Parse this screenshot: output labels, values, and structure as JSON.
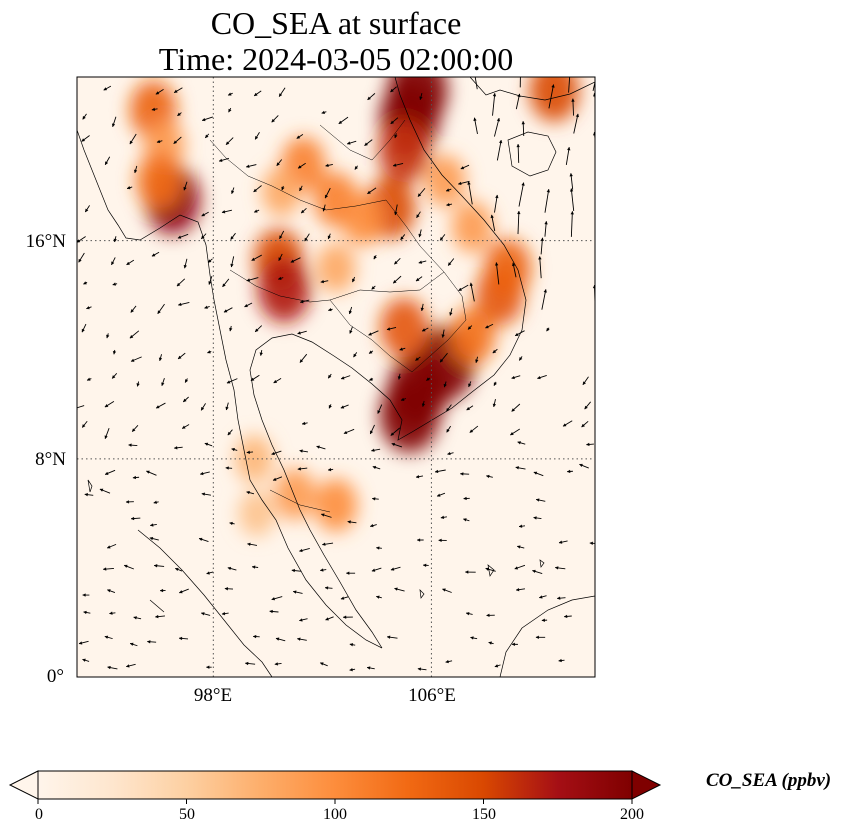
{
  "title_line1": "CO_SEA at surface",
  "title_line2": "Time: 2024-03-05 02:00:00",
  "map": {
    "extent": {
      "lon_min": 93,
      "lon_max": 112,
      "lat_min": 0,
      "lat_max": 22
    },
    "lat_ticks": [
      {
        "value": 0,
        "label": "0°"
      },
      {
        "value": 8,
        "label": "8°N"
      },
      {
        "value": 16,
        "label": "16°N"
      }
    ],
    "lon_ticks": [
      {
        "value": 98,
        "label": "98°E"
      },
      {
        "value": 106,
        "label": "106°E"
      }
    ],
    "gridlines": "dotted",
    "plumes": [
      {
        "lon": 95.8,
        "lat": 20.8,
        "value": 130
      },
      {
        "lon": 96.2,
        "lat": 19.5,
        "value": 90
      },
      {
        "lon": 96.5,
        "lat": 17.5,
        "value": 190
      },
      {
        "lon": 96.0,
        "lat": 18.2,
        "value": 120
      },
      {
        "lon": 101.3,
        "lat": 18.8,
        "value": 110
      },
      {
        "lon": 100.5,
        "lat": 17.8,
        "value": 80
      },
      {
        "lon": 102.5,
        "lat": 17.5,
        "value": 110
      },
      {
        "lon": 104.5,
        "lat": 17.2,
        "value": 150
      },
      {
        "lon": 103.5,
        "lat": 16.8,
        "value": 100
      },
      {
        "lon": 100.4,
        "lat": 15.3,
        "value": 150
      },
      {
        "lon": 100.6,
        "lat": 14.2,
        "value": 170
      },
      {
        "lon": 102.5,
        "lat": 15.0,
        "value": 80
      },
      {
        "lon": 105.5,
        "lat": 21.5,
        "value": 240
      },
      {
        "lon": 105.2,
        "lat": 20.5,
        "value": 220
      },
      {
        "lon": 105.0,
        "lat": 19.3,
        "value": 160
      },
      {
        "lon": 106.5,
        "lat": 18.2,
        "value": 90
      },
      {
        "lon": 107.5,
        "lat": 16.5,
        "value": 90
      },
      {
        "lon": 108.5,
        "lat": 14.0,
        "value": 140
      },
      {
        "lon": 108.8,
        "lat": 15.0,
        "value": 130
      },
      {
        "lon": 106.5,
        "lat": 11.5,
        "value": 230
      },
      {
        "lon": 105.5,
        "lat": 10.5,
        "value": 230
      },
      {
        "lon": 105.2,
        "lat": 9.6,
        "value": 220
      },
      {
        "lon": 105.0,
        "lat": 12.8,
        "value": 140
      },
      {
        "lon": 107.5,
        "lat": 12.5,
        "value": 120
      },
      {
        "lon": 110.5,
        "lat": 21.5,
        "value": 150
      },
      {
        "lon": 99.5,
        "lat": 8.0,
        "value": 70
      },
      {
        "lon": 101.0,
        "lat": 6.7,
        "value": 90
      },
      {
        "lon": 102.5,
        "lat": 6.3,
        "value": 100
      },
      {
        "lon": 99.6,
        "lat": 6.0,
        "value": 60
      }
    ]
  },
  "colorbar": {
    "label": "CO_SEA (ppbv)",
    "min": 0,
    "max": 200,
    "ticks": [
      "0",
      "50",
      "100",
      "150",
      "200"
    ],
    "colors": [
      "#fff5eb",
      "#fee6ce",
      "#fdd0a2",
      "#fdae6b",
      "#fd8d3c",
      "#f16913",
      "#d94801",
      "#a50f15",
      "#7f0000"
    ]
  }
}
